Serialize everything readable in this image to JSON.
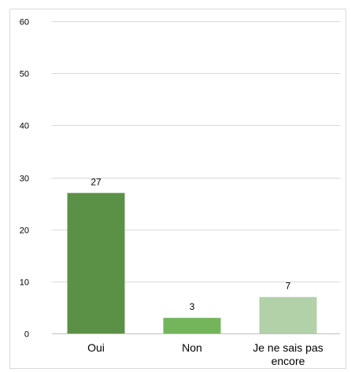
{
  "chart_data": {
    "type": "bar",
    "categories": [
      "Oui",
      "Non",
      "Je ne sais pas encore"
    ],
    "category_label_lines": [
      [
        "Oui"
      ],
      [
        "Non"
      ],
      [
        "Je ne sais pas",
        "encore"
      ]
    ],
    "values": [
      27,
      3,
      7
    ],
    "data_labels": [
      "27",
      "3",
      "7"
    ],
    "bar_colors": [
      "#5b9147",
      "#74b55c",
      "#b2d1a9"
    ],
    "y_ticks": [
      "0",
      "10",
      "20",
      "30",
      "40",
      "50",
      "60"
    ],
    "ylim": [
      0,
      60
    ],
    "title": "",
    "xlabel": "",
    "ylabel": "",
    "grid": true,
    "legend": "none"
  }
}
